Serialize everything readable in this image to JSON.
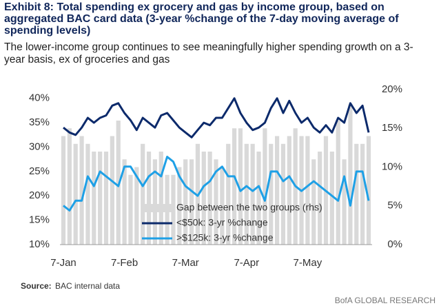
{
  "chart_data": {
    "type": "line",
    "title": "Exhibit 8: Total spending ex grocery and gas by income group, based on aggregated BAC card data (3-year %change of the 7-day moving average of spending levels)",
    "subtitle": "The lower-income group continues to see meaningfully higher spending growth on a 3-year basis, ex of groceries and gas",
    "categories": [
      "7-Jan",
      null,
      null,
      null,
      null,
      null,
      null,
      null,
      null,
      null,
      "7-Feb",
      null,
      null,
      null,
      null,
      null,
      null,
      null,
      null,
      null,
      "7-Mar",
      null,
      null,
      null,
      null,
      null,
      null,
      null,
      null,
      null,
      "7-Apr",
      null,
      null,
      null,
      null,
      null,
      null,
      null,
      null,
      null,
      "7-May",
      null,
      null,
      null,
      null,
      null,
      null,
      null,
      null,
      null,
      null
    ],
    "series": [
      {
        "name": "Gap between the two groups (rhs)",
        "type": "bar",
        "axis": "y2",
        "color": "#d9d9d9",
        "values": [
          14,
          15,
          13,
          14,
          13,
          12,
          12,
          12,
          14,
          16,
          11,
          9,
          10,
          13,
          12,
          11,
          12,
          9,
          9,
          10,
          11,
          11,
          13,
          12,
          12,
          11,
          10,
          13,
          15,
          15,
          13,
          13,
          12,
          15,
          13,
          14,
          13,
          14,
          15,
          14,
          14,
          11,
          12,
          14,
          12,
          16,
          11,
          18,
          13,
          13,
          14
        ]
      },
      {
        "name": "<$50k: 3-yr %change",
        "color": "#0c2a6b",
        "values": [
          34,
          33,
          32.5,
          34,
          36,
          35,
          36,
          36.5,
          38.5,
          39,
          37,
          35.5,
          33.5,
          36,
          35,
          34,
          36.5,
          37,
          35.5,
          34,
          33,
          32,
          33.5,
          35,
          34.5,
          36,
          36,
          38,
          40,
          37,
          35,
          33.5,
          34,
          35,
          38,
          40,
          37,
          39.5,
          37,
          35,
          36,
          34,
          33,
          34.5,
          33,
          36,
          35,
          39,
          37,
          38.5,
          33
        ]
      },
      {
        "name": ">$125k: 3-yr %change",
        "color": "#1ea0e6",
        "values": [
          18,
          17,
          19,
          19,
          24,
          22,
          25,
          24,
          23,
          22,
          26,
          26,
          24,
          22,
          24,
          25,
          24,
          28,
          27,
          24,
          22,
          21,
          20,
          22,
          23,
          25,
          26,
          24,
          24,
          21,
          22,
          21,
          22,
          19,
          25,
          25,
          23,
          24,
          22,
          21,
          22,
          23,
          22,
          21,
          20,
          19,
          24,
          18,
          25,
          25,
          19
        ]
      }
    ],
    "ylim": [
      10,
      41.8
    ],
    "yticks": [
      {
        "value": 10,
        "label": "10%"
      },
      {
        "value": 15,
        "label": "15%"
      },
      {
        "value": 20,
        "label": "20%"
      },
      {
        "value": 25,
        "label": "25%"
      },
      {
        "value": 30,
        "label": "30%"
      },
      {
        "value": 35,
        "label": "35%"
      },
      {
        "value": 40,
        "label": "40%"
      }
    ],
    "y2lim": [
      0,
      20
    ],
    "y2ticks": [
      {
        "value": 0,
        "label": "0%"
      },
      {
        "value": 5,
        "label": "5%"
      },
      {
        "value": 10,
        "label": "10%"
      },
      {
        "value": 15,
        "label": "15%"
      },
      {
        "value": 20,
        "label": "20%"
      }
    ],
    "source_label": "Source:",
    "source_text": "BAC internal data",
    "footer": "BofA GLOBAL RESEARCH"
  }
}
